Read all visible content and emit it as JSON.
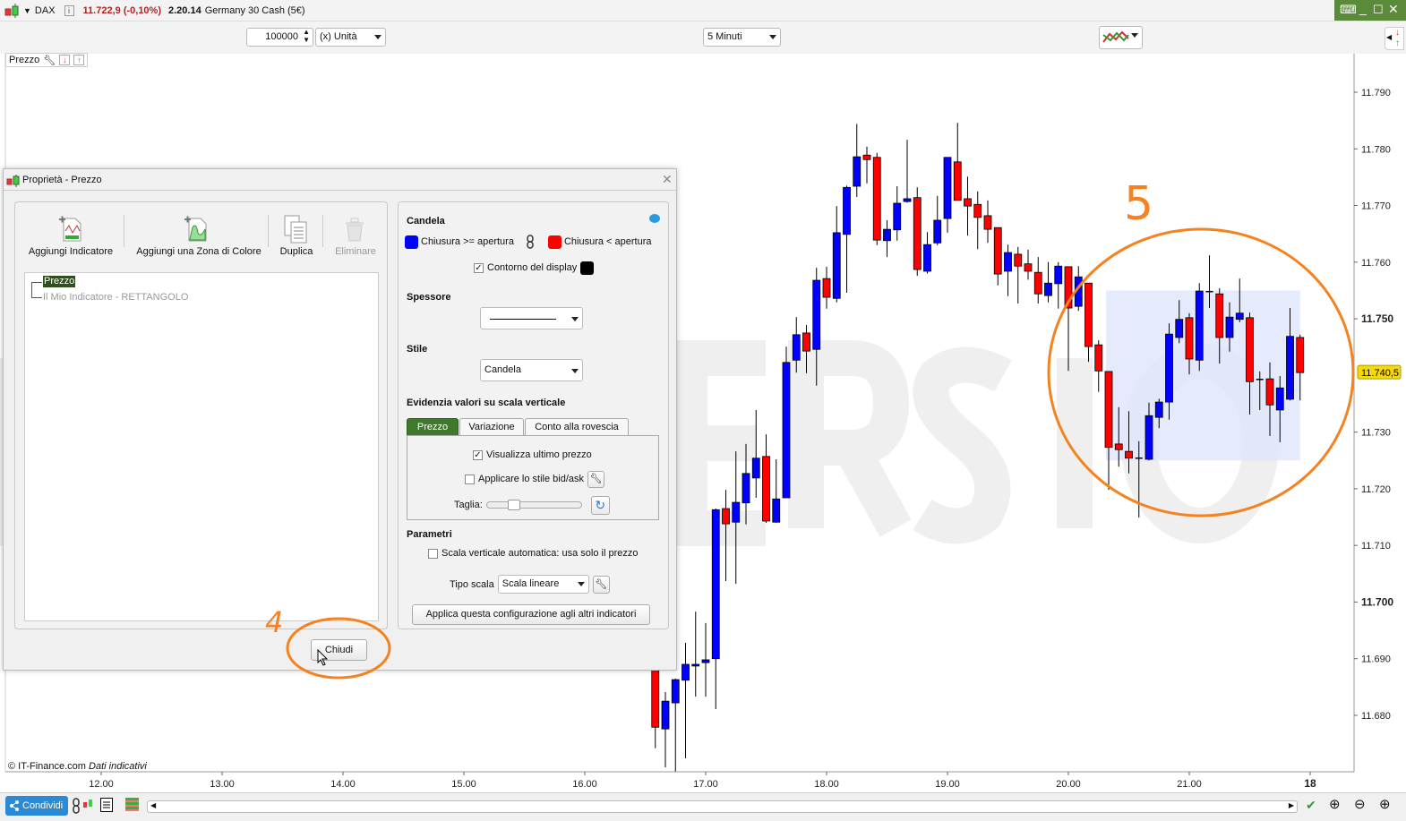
{
  "topbar": {
    "symbol": "DAX",
    "price": "11.722,9 (-0,10%)",
    "time": "2.20.14",
    "instrument": "Germany 30 Cash (5€)",
    "price_color": "#b22222",
    "window_controls_color": "#5a8a3a"
  },
  "toolbar": {
    "quantity": "100000",
    "unit": "(x) Unità",
    "timeframe": "5 Minuti"
  },
  "chart": {
    "legend_label": "Prezzo",
    "watermark": "DEMO VERSION",
    "copyright": "© IT-Finance.com",
    "disclaimer": "Dati indicativi",
    "last_price": "11.740,5",
    "last_price_color": "#f5d90a",
    "up_color": "#0000ff",
    "down_color": "#ff0000",
    "rectangle_color": "#dfe6fb",
    "annotation_color": "#f58220"
  },
  "annotations": {
    "step4": "4",
    "step5": "5"
  },
  "chart_data": {
    "type": "candlestick",
    "timeframe": "5 Minuti",
    "y_ticks": [
      "11.680",
      "11.690",
      "11.700",
      "11.710",
      "11.720",
      "11.730",
      "11.740",
      "11.750",
      "11.760",
      "11.770",
      "11.780",
      "11.790"
    ],
    "y_tick_values": [
      11680,
      11690,
      11700,
      11710,
      11720,
      11730,
      11740,
      11750,
      11760,
      11770,
      11780,
      11790
    ],
    "x_ticks": [
      {
        "label": "12.00",
        "time": "12:00"
      },
      {
        "label": "13.00",
        "time": "13:00"
      },
      {
        "label": "14.00",
        "time": "14:00"
      },
      {
        "label": "15.00",
        "time": "15:00"
      },
      {
        "label": "16.00",
        "time": "16:00"
      },
      {
        "label": "17.00",
        "time": "17:00"
      },
      {
        "label": "18.00",
        "time": "18:00"
      },
      {
        "label": "19.00",
        "time": "19:00"
      },
      {
        "label": "20.00",
        "time": "20:00"
      },
      {
        "label": "21.00",
        "time": "21:00"
      },
      {
        "label": "18",
        "time": "22:00"
      }
    ],
    "ylim": [
      11668,
      11796
    ],
    "rectangle": {
      "label": "Il Mio Indicatore - RETTANGOLO",
      "from": "20:20",
      "to": "21:55",
      "top": 11755,
      "bottom": 11725
    },
    "candles": [
      [
        "16:35",
        11688.1,
        11688.5,
        11674.2,
        11677.9
      ],
      [
        "16:40",
        11677.6,
        11684.1,
        11670.8,
        11682.5
      ],
      [
        "16:45",
        11682.2,
        11686.5,
        11670.0,
        11686.3
      ],
      [
        "16:50",
        11686.2,
        11692.8,
        11672.4,
        11689.0
      ],
      [
        "16:55",
        11688.7,
        11698.3,
        11683.3,
        11689.0
      ],
      [
        "17:00",
        11689.3,
        11696.3,
        11683.3,
        11689.8
      ],
      [
        "17:05",
        11690.0,
        11716.5,
        11681.1,
        11716.3
      ],
      [
        "17:10",
        11716.5,
        11719.8,
        11703.7,
        11713.8
      ],
      [
        "17:15",
        11714.1,
        11726.6,
        11703.2,
        11717.6
      ],
      [
        "17:20",
        11717.5,
        11727.9,
        11713.7,
        11722.7
      ],
      [
        "17:25",
        11721.9,
        11733.9,
        11718.4,
        11725.4
      ],
      [
        "17:30",
        11725.7,
        11729.6,
        11714.0,
        11714.3
      ],
      [
        "17:35",
        11714.1,
        11725.2,
        11714.0,
        11718.2
      ],
      [
        "17:40",
        11718.4,
        11745.1,
        11718.4,
        11742.3
      ],
      [
        "17:45",
        11742.7,
        11750.3,
        11740.5,
        11747.2
      ],
      [
        "17:50",
        11747.5,
        11748.9,
        11740.4,
        11744.3
      ],
      [
        "17:55",
        11744.6,
        11759.0,
        11738.2,
        11756.8
      ],
      [
        "18:00",
        11757.1,
        11759.2,
        11751.8,
        11753.8
      ],
      [
        "18:05",
        11753.6,
        11769.9,
        11752.9,
        11765.2
      ],
      [
        "18:10",
        11764.9,
        11773.5,
        11754.6,
        11773.2
      ],
      [
        "18:15",
        11773.4,
        11784.4,
        11771.5,
        11778.6
      ],
      [
        "18:20",
        11778.9,
        11780.4,
        11773.9,
        11778.1
      ],
      [
        "18:25",
        11778.5,
        11779.3,
        11763.0,
        11763.9
      ],
      [
        "18:30",
        11763.8,
        11767.4,
        11760.9,
        11765.8
      ],
      [
        "18:35",
        11765.7,
        11773.4,
        11763.8,
        11770.4
      ],
      [
        "18:40",
        11770.7,
        11781.6,
        11770.5,
        11771.2
      ],
      [
        "18:45",
        11771.4,
        11773.2,
        11757.6,
        11758.7
      ],
      [
        "18:50",
        11758.4,
        11765.3,
        11758.0,
        11763.1
      ],
      [
        "18:55",
        11763.4,
        11771.7,
        11763.0,
        11767.4
      ],
      [
        "19:00",
        11767.7,
        11778.5,
        11765.2,
        11778.5
      ],
      [
        "19:05",
        11777.7,
        11784.6,
        11770.9,
        11770.9
      ],
      [
        "19:10",
        11771.2,
        11775.1,
        11764.7,
        11769.9
      ],
      [
        "19:15",
        11770.2,
        11772.5,
        11762.3,
        11767.9
      ],
      [
        "19:20",
        11768.2,
        11770.9,
        11763.4,
        11765.8
      ],
      [
        "19:25",
        11766.1,
        11766.1,
        11755.9,
        11757.9
      ],
      [
        "19:30",
        11758.4,
        11763.1,
        11754.0,
        11761.7
      ],
      [
        "19:35",
        11761.4,
        11762.7,
        11752.7,
        11759.3
      ],
      [
        "19:40",
        11759.7,
        11762.2,
        11756.9,
        11758.4
      ],
      [
        "19:45",
        11758.2,
        11760.9,
        11752.7,
        11754.4
      ],
      [
        "19:50",
        11754.1,
        11760.0,
        11752.9,
        11756.3
      ],
      [
        "19:55",
        11756.2,
        11760.0,
        11751.8,
        11759.3
      ],
      [
        "20:00",
        11759.2,
        11759.2,
        11740.8,
        11751.9
      ],
      [
        "20:05",
        11752.2,
        11759.3,
        11751.4,
        11757.4
      ],
      [
        "20:10",
        11756.3,
        11756.3,
        11742.4,
        11745.1
      ],
      [
        "20:15",
        11745.4,
        11746.2,
        11737.1,
        11740.8
      ],
      [
        "20:20",
        11740.7,
        11740.7,
        11719.8,
        11727.3
      ],
      [
        "20:25",
        11727.9,
        11734.4,
        11723.9,
        11726.9
      ],
      [
        "20:30",
        11726.6,
        11733.7,
        11722.7,
        11725.4
      ],
      [
        "20:35",
        11725.4,
        11728.4,
        11714.9,
        11725.4
      ],
      [
        "20:40",
        11725.2,
        11735.2,
        11725.0,
        11732.9
      ],
      [
        "20:45",
        11732.6,
        11735.9,
        11730.7,
        11735.3
      ],
      [
        "20:50",
        11735.3,
        11749.2,
        11732.2,
        11747.3
      ],
      [
        "20:55",
        11746.7,
        11753.3,
        11745.7,
        11749.9
      ],
      [
        "21:00",
        11750.2,
        11751.0,
        11740.2,
        11742.9
      ],
      [
        "21:05",
        11742.7,
        11756.3,
        11740.8,
        11754.9
      ],
      [
        "21:10",
        11754.8,
        11761.2,
        11751.9,
        11754.8
      ],
      [
        "21:15",
        11754.4,
        11755.4,
        11742.1,
        11746.7
      ],
      [
        "21:20",
        11746.7,
        11752.9,
        11744.2,
        11750.3
      ],
      [
        "21:25",
        11749.9,
        11757.1,
        11749.4,
        11751.0
      ],
      [
        "21:30",
        11750.2,
        11751.1,
        11733.1,
        11738.9
      ],
      [
        "21:35",
        11739.3,
        11740.7,
        11733.9,
        11739.3
      ],
      [
        "21:40",
        11739.4,
        11742.3,
        11729.3,
        11734.8
      ],
      [
        "21:45",
        11733.9,
        11739.9,
        11728.2,
        11737.8
      ],
      [
        "21:50",
        11735.8,
        11751.9,
        11735.6,
        11746.9
      ],
      [
        "21:55",
        11746.7,
        11747.2,
        11735.6,
        11740.5
      ]
    ]
  },
  "dialog": {
    "title": "Proprietà - Prezzo",
    "toolbar": {
      "add_indicator": "Aggiungi Indicatore",
      "add_zone": "Aggiungi una Zona di Colore",
      "duplicate": "Duplica",
      "delete": "Eliminare"
    },
    "tree": {
      "root": "Prezzo",
      "child": "Il Mio Indicatore - RETTANGOLO"
    },
    "candela": {
      "heading": "Candela",
      "up_label": "Chiusura >= apertura",
      "down_label": "Chiusura < apertura",
      "up_color": "#0000ff",
      "down_color": "#ff0000",
      "outline_label": "Contorno del display",
      "outline_checked": true,
      "outline_color": "#000000"
    },
    "spessore": {
      "heading": "Spessore"
    },
    "stile": {
      "heading": "Stile",
      "value": "Candela"
    },
    "evidenzia": {
      "heading": "Evidenzia valori su scala verticale",
      "tabs": [
        "Prezzo",
        "Variazione",
        "Conto alla rovescia"
      ],
      "active_tab": "Prezzo",
      "show_last": "Visualizza ultimo prezzo",
      "show_last_checked": true,
      "bidask": "Applicare lo stile bid/ask",
      "bidask_checked": false,
      "size_label": "Taglia:",
      "size_value": 0.25
    },
    "parametri": {
      "heading": "Parametri",
      "auto_scale": "Scala verticale automatica: usa solo il prezzo",
      "auto_scale_checked": false,
      "scale_type_label": "Tipo scala",
      "scale_type": "Scala lineare",
      "apply_all": "Applica questa configurazione agli altri indicatori"
    },
    "close": "Chiudi"
  },
  "bottombar": {
    "share": "Condividi"
  }
}
